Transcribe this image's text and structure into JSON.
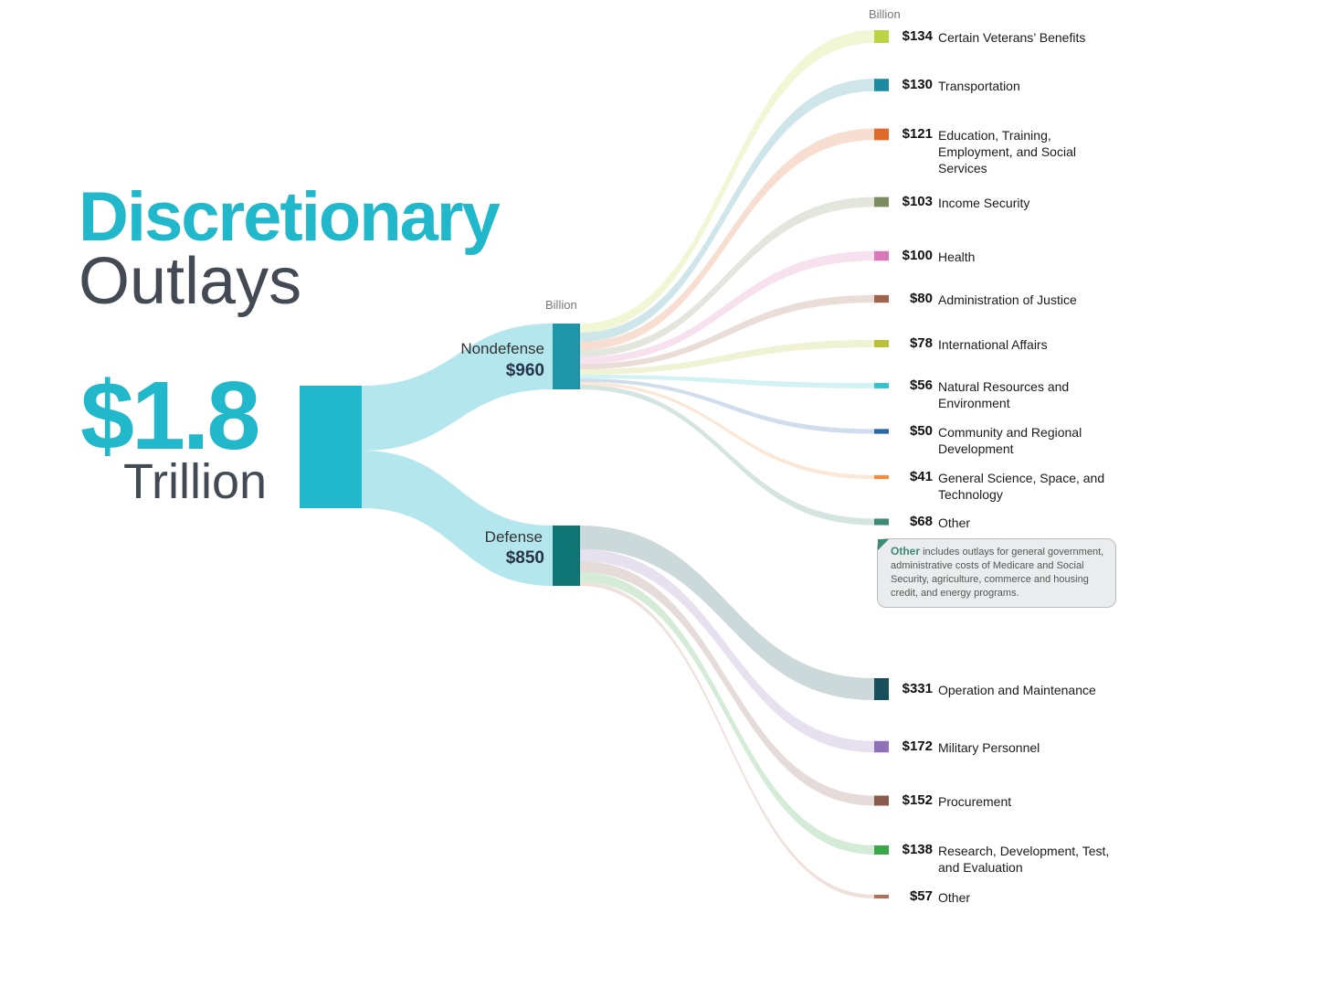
{
  "title": {
    "line1": "Discretionary",
    "line2": "Outlays"
  },
  "total": {
    "value": "$1.8",
    "unit": "Trillion"
  },
  "unit_label_mid": "Billion",
  "unit_label_leaves": "Billion",
  "colors": {
    "accent": "#22b8cc",
    "dark_text": "#434a54",
    "nondefense_node": "#1e96a8",
    "defense_node": "#0f7474"
  },
  "nondefense": {
    "name": "Nondefense",
    "value_label": "$960",
    "value": 960,
    "items": [
      {
        "value": 134,
        "value_label": "$134",
        "label": "Certain Veterans’ Benefits",
        "color": "#bdd442"
      },
      {
        "value": 130,
        "value_label": "$130",
        "label": "Transportation",
        "color": "#1e8aa0"
      },
      {
        "value": 121,
        "value_label": "$121",
        "label": "Education, Training, Employment, and Social Services",
        "color": "#e06a2a"
      },
      {
        "value": 103,
        "value_label": "$103",
        "label": "Income Security",
        "color": "#7b8c5e"
      },
      {
        "value": 100,
        "value_label": "$100",
        "label": "Health",
        "color": "#d978b8"
      },
      {
        "value": 80,
        "value_label": "$80",
        "label": "Administration of Justice",
        "color": "#a0644e"
      },
      {
        "value": 78,
        "value_label": "$78",
        "label": "International Affairs",
        "color": "#b9c23c"
      },
      {
        "value": 56,
        "value_label": "$56",
        "label": "Natural Resources and Environment",
        "color": "#32c2cf"
      },
      {
        "value": 50,
        "value_label": "$50",
        "label": "Community and Regional Development",
        "color": "#2a66a8"
      },
      {
        "value": 41,
        "value_label": "$41",
        "label": "General Science, Space, and Technology",
        "color": "#f28c3c"
      },
      {
        "value": 68,
        "value_label": "$68",
        "label": "Other",
        "color": "#3d8a78"
      }
    ]
  },
  "defense": {
    "name": "Defense",
    "value_label": "$850",
    "value": 850,
    "items": [
      {
        "value": 331,
        "value_label": "$331",
        "label": "Operation and Maintenance",
        "color": "#17505a"
      },
      {
        "value": 172,
        "value_label": "$172",
        "label": "Military Personnel",
        "color": "#9070b8"
      },
      {
        "value": 152,
        "value_label": "$152",
        "label": "Procurement",
        "color": "#8a5a4c"
      },
      {
        "value": 138,
        "value_label": "$138",
        "label": "Research, Development, Test, and Evaluation",
        "color": "#3aa84a"
      },
      {
        "value": 57,
        "value_label": "$57",
        "label": "Other",
        "color": "#b0705a"
      }
    ]
  },
  "callout": {
    "keyword": "Other",
    "text": " includes outlays for general government, administrative costs of Medicare and Social Security, agriculture, commerce and housing credit, and energy programs."
  }
}
